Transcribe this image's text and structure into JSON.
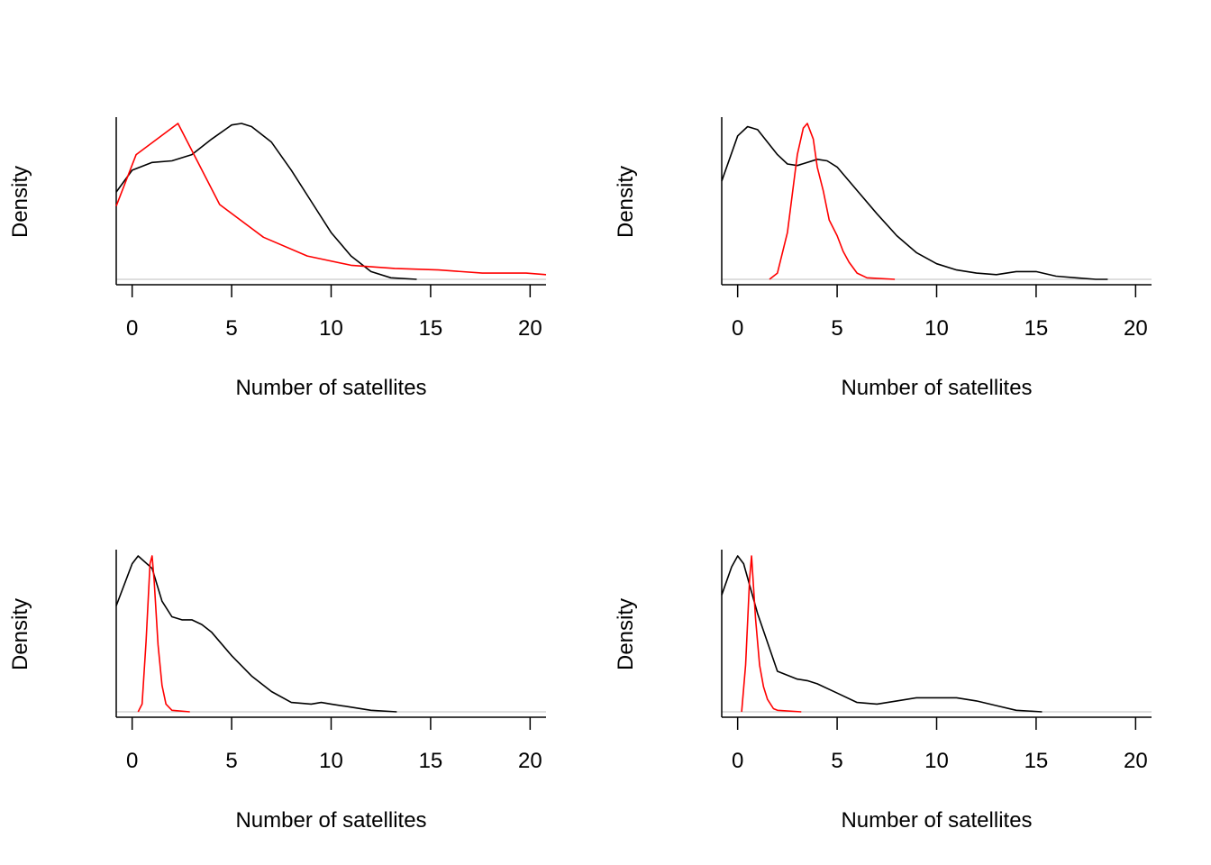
{
  "colors": {
    "observed": "#000000",
    "predicted": "#ff0000",
    "baseline": "#bebebe",
    "axis": "#000000"
  },
  "chart_data": [
    {
      "type": "line",
      "xlabel": "Number of satellites",
      "ylabel": "Density",
      "xlim": [
        -0.8,
        20.8
      ],
      "xticks": [
        0,
        5,
        10,
        15,
        20
      ],
      "ylim": [
        0,
        1
      ],
      "series": [
        {
          "color": "#000000",
          "points": [
            [
              -0.8,
              0.56
            ],
            [
              0,
              0.7
            ],
            [
              1,
              0.75
            ],
            [
              2,
              0.76
            ],
            [
              3,
              0.8
            ],
            [
              4,
              0.9
            ],
            [
              5,
              0.99
            ],
            [
              5.5,
              1.0
            ],
            [
              6,
              0.98
            ],
            [
              7,
              0.88
            ],
            [
              8,
              0.7
            ],
            [
              9,
              0.5
            ],
            [
              10,
              0.3
            ],
            [
              11,
              0.15
            ],
            [
              12,
              0.05
            ],
            [
              13,
              0.01
            ],
            [
              14.3,
              0.0
            ]
          ]
        },
        {
          "color": "#ff0000",
          "points": [
            [
              -0.8,
              0.47
            ],
            [
              0.2,
              0.8
            ],
            [
              2.3,
              1.0
            ],
            [
              4.4,
              0.48
            ],
            [
              6.6,
              0.27
            ],
            [
              8.8,
              0.15
            ],
            [
              11,
              0.09
            ],
            [
              13.2,
              0.07
            ],
            [
              15.4,
              0.06
            ],
            [
              17.6,
              0.04
            ],
            [
              19.8,
              0.04
            ],
            [
              20.8,
              0.03
            ]
          ]
        }
      ]
    },
    {
      "type": "line",
      "xlabel": "Number of satellites",
      "ylabel": "Density",
      "xlim": [
        -0.8,
        20.8
      ],
      "xticks": [
        0,
        5,
        10,
        15,
        20
      ],
      "ylim": [
        0,
        1
      ],
      "series": [
        {
          "color": "#000000",
          "points": [
            [
              -0.8,
              0.63
            ],
            [
              0,
              0.92
            ],
            [
              0.5,
              0.98
            ],
            [
              1,
              0.96
            ],
            [
              2,
              0.8
            ],
            [
              2.5,
              0.74
            ],
            [
              3,
              0.73
            ],
            [
              4,
              0.77
            ],
            [
              4.5,
              0.76
            ],
            [
              5,
              0.72
            ],
            [
              6,
              0.57
            ],
            [
              7,
              0.42
            ],
            [
              8,
              0.28
            ],
            [
              9,
              0.17
            ],
            [
              10,
              0.1
            ],
            [
              11,
              0.06
            ],
            [
              12,
              0.04
            ],
            [
              13,
              0.03
            ],
            [
              14,
              0.05
            ],
            [
              14.5,
              0.05
            ],
            [
              15,
              0.05
            ],
            [
              16,
              0.02
            ],
            [
              17,
              0.01
            ],
            [
              18,
              0.0
            ],
            [
              18.6,
              0.0
            ]
          ]
        },
        {
          "color": "#ff0000",
          "points": [
            [
              1.6,
              0.0
            ],
            [
              2,
              0.04
            ],
            [
              2.5,
              0.3
            ],
            [
              3,
              0.8
            ],
            [
              3.3,
              0.97
            ],
            [
              3.5,
              1.0
            ],
            [
              3.8,
              0.9
            ],
            [
              4,
              0.72
            ],
            [
              4.3,
              0.57
            ],
            [
              4.6,
              0.38
            ],
            [
              5,
              0.28
            ],
            [
              5.3,
              0.18
            ],
            [
              5.6,
              0.11
            ],
            [
              6,
              0.04
            ],
            [
              6.5,
              0.01
            ],
            [
              7.9,
              0.0
            ]
          ]
        }
      ]
    },
    {
      "type": "line",
      "xlabel": "Number of satellites",
      "ylabel": "Density",
      "xlim": [
        -0.8,
        20.8
      ],
      "xticks": [
        0,
        5,
        10,
        15,
        20
      ],
      "ylim": [
        0,
        1
      ],
      "series": [
        {
          "color": "#000000",
          "points": [
            [
              -0.8,
              0.68
            ],
            [
              0,
              0.95
            ],
            [
              0.3,
              1.0
            ],
            [
              1,
              0.92
            ],
            [
              1.5,
              0.71
            ],
            [
              2,
              0.61
            ],
            [
              2.5,
              0.59
            ],
            [
              3,
              0.59
            ],
            [
              3.5,
              0.56
            ],
            [
              4,
              0.51
            ],
            [
              5,
              0.36
            ],
            [
              6,
              0.23
            ],
            [
              7,
              0.13
            ],
            [
              8,
              0.06
            ],
            [
              9,
              0.05
            ],
            [
              9.5,
              0.06
            ],
            [
              10,
              0.05
            ],
            [
              11,
              0.03
            ],
            [
              12,
              0.01
            ],
            [
              13.3,
              0.0
            ]
          ]
        },
        {
          "color": "#ff0000",
          "points": [
            [
              0.3,
              0.0
            ],
            [
              0.5,
              0.05
            ],
            [
              0.7,
              0.45
            ],
            [
              0.9,
              0.95
            ],
            [
              1.0,
              1.0
            ],
            [
              1.1,
              0.85
            ],
            [
              1.3,
              0.43
            ],
            [
              1.5,
              0.17
            ],
            [
              1.7,
              0.05
            ],
            [
              2,
              0.01
            ],
            [
              2.9,
              0.0
            ]
          ]
        }
      ]
    },
    {
      "type": "line",
      "xlabel": "Number of satellites",
      "ylabel": "Density",
      "xlim": [
        -0.8,
        20.8
      ],
      "xticks": [
        0,
        5,
        10,
        15,
        20
      ],
      "ylim": [
        0,
        1
      ],
      "series": [
        {
          "color": "#000000",
          "points": [
            [
              -0.8,
              0.75
            ],
            [
              -0.3,
              0.93
            ],
            [
              0,
              1.0
            ],
            [
              0.3,
              0.95
            ],
            [
              1,
              0.63
            ],
            [
              2,
              0.26
            ],
            [
              3,
              0.21
            ],
            [
              3.5,
              0.2
            ],
            [
              4,
              0.18
            ],
            [
              5,
              0.12
            ],
            [
              6,
              0.06
            ],
            [
              7,
              0.05
            ],
            [
              8,
              0.07
            ],
            [
              9,
              0.09
            ],
            [
              10,
              0.09
            ],
            [
              11,
              0.09
            ],
            [
              12,
              0.07
            ],
            [
              13,
              0.04
            ],
            [
              14,
              0.01
            ],
            [
              15.3,
              0.0
            ]
          ]
        },
        {
          "color": "#ff0000",
          "points": [
            [
              0.2,
              0.0
            ],
            [
              0.4,
              0.3
            ],
            [
              0.6,
              0.85
            ],
            [
              0.7,
              1.0
            ],
            [
              0.9,
              0.6
            ],
            [
              1.1,
              0.3
            ],
            [
              1.3,
              0.16
            ],
            [
              1.5,
              0.08
            ],
            [
              1.8,
              0.02
            ],
            [
              2,
              0.01
            ],
            [
              3.2,
              0.0
            ]
          ]
        }
      ]
    }
  ]
}
